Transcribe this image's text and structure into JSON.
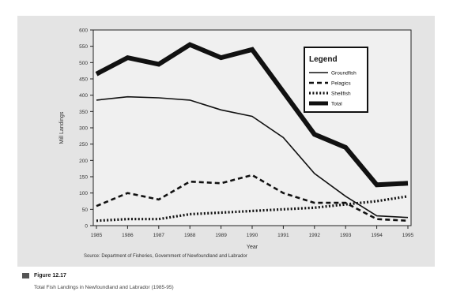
{
  "chart_data": {
    "type": "line",
    "title": "",
    "xlabel": "Year",
    "ylabel": "Mill Landings",
    "x": [
      "1985",
      "1986",
      "1987",
      "1988",
      "1989",
      "1990",
      "1991",
      "1992",
      "1993",
      "1994",
      "1995"
    ],
    "ylim": [
      0,
      600
    ],
    "yticks": [
      0,
      50,
      100,
      150,
      200,
      250,
      300,
      350,
      400,
      450,
      500,
      550,
      600
    ],
    "legend_title": "Legend",
    "legend_position": "top-right",
    "grid": false,
    "series": [
      {
        "name": "Groundfish",
        "style": "solid",
        "values": [
          385,
          395,
          392,
          385,
          355,
          335,
          270,
          160,
          90,
          30,
          25
        ]
      },
      {
        "name": "Pelagics",
        "style": "dashed",
        "values": [
          60,
          100,
          80,
          135,
          130,
          155,
          100,
          70,
          70,
          20,
          15
        ]
      },
      {
        "name": "Shellfish",
        "style": "dotted",
        "values": [
          15,
          20,
          20,
          35,
          40,
          45,
          50,
          55,
          65,
          75,
          90
        ]
      },
      {
        "name": "Total",
        "style": "thick",
        "values": [
          465,
          515,
          495,
          555,
          515,
          540,
          410,
          280,
          240,
          125,
          130
        ]
      }
    ]
  },
  "source": "Source: Department of Fisheries, Government of Newfoundland and Labrador",
  "figure": {
    "label": "Figure 12.17",
    "description": "Total Fish Landings in Newfoundland and Labrador (1985-95)"
  },
  "colors": {
    "panel": "#e4e4e4",
    "plot_bg": "#f0f0f0",
    "ink": "#111111"
  }
}
